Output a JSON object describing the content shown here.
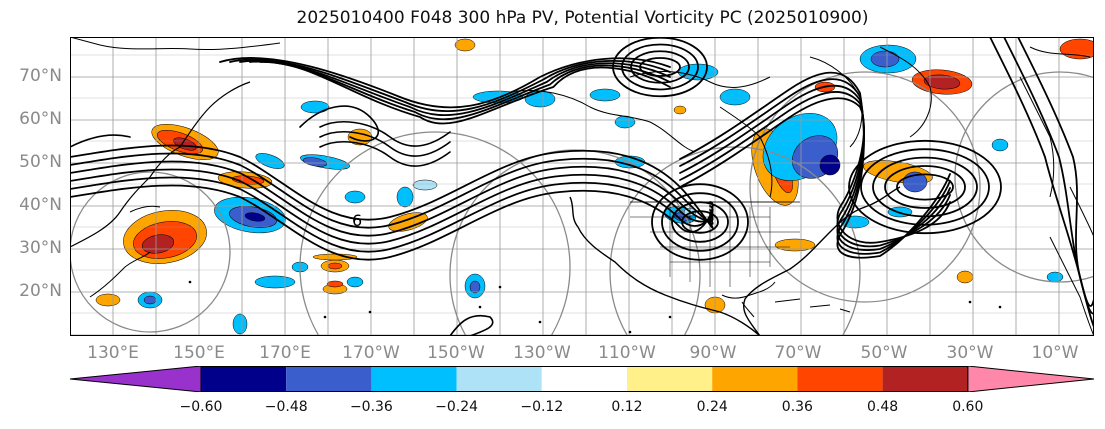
{
  "title": "2025010400 F048 300 hPa PV, Potential Vorticity PC (2025010900)",
  "map": {
    "lon_labels": [
      "130°E",
      "150°E",
      "170°E",
      "170°W",
      "150°W",
      "130°W",
      "110°W",
      "90°W",
      "70°W",
      "50°W",
      "30°W",
      "10°W"
    ],
    "lat_labels": [
      "70°N",
      "60°N",
      "50°N",
      "40°N",
      "30°N",
      "20°N"
    ],
    "contour_label": "6",
    "colors": {
      "coast": "#000000",
      "contour": "#000000",
      "grid": "#9a9a9a",
      "circle": "#8a8a8a"
    }
  },
  "colorbar": {
    "ticks": [
      "−0.60",
      "−0.48",
      "−0.36",
      "−0.24",
      "−0.12",
      "0.12",
      "0.24",
      "0.36",
      "0.48",
      "0.60"
    ],
    "colors": [
      "#9932cc",
      "#00008b",
      "#3a5fcd",
      "#00bfff",
      "#aee3f7",
      "#ffffff",
      "#fff08a",
      "#ffa500",
      "#ff4500",
      "#b22222",
      "#ff88aa"
    ]
  }
}
